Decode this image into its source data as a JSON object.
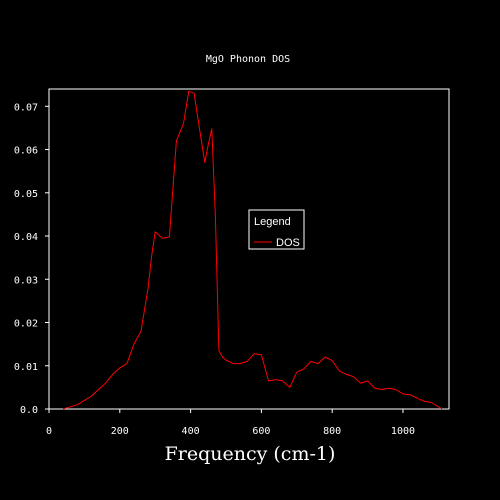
{
  "chart_data": {
    "type": "line",
    "title": "MgO Phonon DOS",
    "xlabel": "Frequency (cm-1)",
    "ylabel": "",
    "xlim": [
      0,
      1130
    ],
    "ylim": [
      0,
      0.074
    ],
    "x_ticks": [
      0,
      200,
      400,
      600,
      800,
      1000
    ],
    "x_tick_labels": [
      "0",
      "200",
      "400",
      "600",
      "800",
      "1000"
    ],
    "y_ticks": [
      0.0,
      0.01,
      0.02,
      0.03,
      0.04,
      0.05,
      0.06,
      0.07
    ],
    "y_tick_labels": [
      "0.0",
      "0.01",
      "0.02",
      "0.03",
      "0.04",
      "0.05",
      "0.06",
      "0.07"
    ],
    "grid": false,
    "legend": {
      "title": "Legend",
      "placement": "center-right"
    },
    "series": [
      {
        "name": "DOS",
        "color": "#ff0000",
        "x": [
          40,
          60,
          80,
          100,
          120,
          140,
          160,
          180,
          200,
          220,
          240,
          260,
          280,
          290,
          300,
          320,
          340,
          360,
          380,
          395,
          410,
          420,
          440,
          450,
          460,
          470,
          480,
          490,
          500,
          520,
          540,
          560,
          580,
          600,
          620,
          640,
          660,
          680,
          700,
          720,
          740,
          760,
          780,
          800,
          820,
          840,
          860,
          880,
          900,
          920,
          940,
          960,
          980,
          1000,
          1020,
          1040,
          1060,
          1080,
          1110
        ],
        "y": [
          0.0,
          0.0005,
          0.001,
          0.002,
          0.003,
          0.0045,
          0.006,
          0.008,
          0.0095,
          0.0105,
          0.015,
          0.018,
          0.028,
          0.0355,
          0.041,
          0.0395,
          0.0398,
          0.062,
          0.066,
          0.0735,
          0.073,
          0.0675,
          0.057,
          0.0612,
          0.0648,
          0.0445,
          0.0135,
          0.012,
          0.0113,
          0.0105,
          0.0105,
          0.011,
          0.0128,
          0.0125,
          0.0065,
          0.0068,
          0.0065,
          0.005,
          0.0085,
          0.0093,
          0.011,
          0.0105,
          0.012,
          0.0112,
          0.0088,
          0.008,
          0.0075,
          0.006,
          0.0065,
          0.0048,
          0.0045,
          0.0048,
          0.0045,
          0.0035,
          0.0033,
          0.0025,
          0.0018,
          0.0015,
          0.0
        ]
      }
    ]
  }
}
